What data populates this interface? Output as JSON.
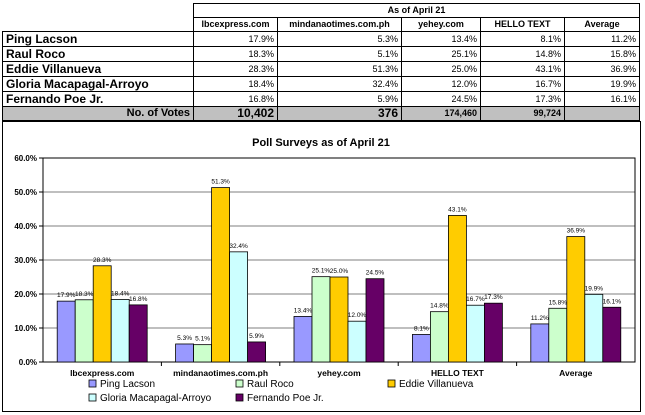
{
  "table": {
    "as_of": "As of April 21",
    "columns": [
      "lbcexpress.com",
      "mindanaotimes.com.ph",
      "yehey.com",
      "HELLO TEXT",
      "Average"
    ],
    "rows": [
      {
        "name": "Ping Lacson",
        "values": [
          "17.9%",
          "5.3%",
          "13.4%",
          "8.1%",
          "11.2%"
        ]
      },
      {
        "name": "Raul Roco",
        "values": [
          "18.3%",
          "5.1%",
          "25.1%",
          "14.8%",
          "15.8%"
        ]
      },
      {
        "name": "Eddie Villanueva",
        "values": [
          "28.3%",
          "51.3%",
          "25.0%",
          "43.1%",
          "36.9%"
        ]
      },
      {
        "name": "Gloria Macapagal-Arroyo",
        "values": [
          "18.4%",
          "32.4%",
          "12.0%",
          "16.7%",
          "19.9%"
        ]
      },
      {
        "name": "Fernando Poe Jr.",
        "values": [
          "16.8%",
          "5.9%",
          "24.5%",
          "17.3%",
          "16.1%"
        ]
      }
    ],
    "votes_label": "No. of Votes",
    "votes": [
      "10,402",
      "376",
      "174,460",
      "99,724",
      ""
    ]
  },
  "chart_data": {
    "type": "bar",
    "title": "Poll Surveys as of April 21",
    "categories": [
      "lbcexpress.com",
      "mindanaotimes.com.ph",
      "yehey.com",
      "HELLO TEXT",
      "Average"
    ],
    "ylim": [
      0,
      60
    ],
    "yticks": [
      "0.0%",
      "10.0%",
      "20.0%",
      "30.0%",
      "40.0%",
      "50.0%",
      "60.0%"
    ],
    "legend_position": "bottom",
    "series": [
      {
        "name": "Ping Lacson",
        "color": "#9999ff",
        "values": [
          17.9,
          5.3,
          13.4,
          8.1,
          11.2
        ],
        "labels": [
          "17.9%",
          "5.3%",
          "13.4%",
          "8.1%",
          "11.2%"
        ]
      },
      {
        "name": "Raul Roco",
        "color": "#ccffcc",
        "values": [
          18.3,
          5.1,
          25.1,
          14.8,
          15.8
        ],
        "labels": [
          "18.3%",
          "5.1%",
          "25.1%",
          "14.8%",
          "15.8%"
        ]
      },
      {
        "name": "Eddie Villanueva",
        "color": "#ffcc00",
        "values": [
          28.3,
          51.3,
          25.0,
          43.1,
          36.9
        ],
        "labels": [
          "28.3%",
          "51.3%",
          "25.0%",
          "43.1%",
          "36.9%"
        ]
      },
      {
        "name": "Gloria Macapagal-Arroyo",
        "color": "#ccffff",
        "values": [
          18.4,
          32.4,
          12.0,
          16.7,
          19.9
        ],
        "labels": [
          "18.4%",
          "32.4%",
          "12.0%",
          "16.7%",
          "19.9%"
        ]
      },
      {
        "name": "Fernando Poe Jr.",
        "color": "#660066",
        "values": [
          16.8,
          5.9,
          24.5,
          17.3,
          16.1
        ],
        "labels": [
          "16.8%",
          "5.9%",
          "24.5%",
          "17.3%",
          "16.1%"
        ]
      }
    ]
  }
}
